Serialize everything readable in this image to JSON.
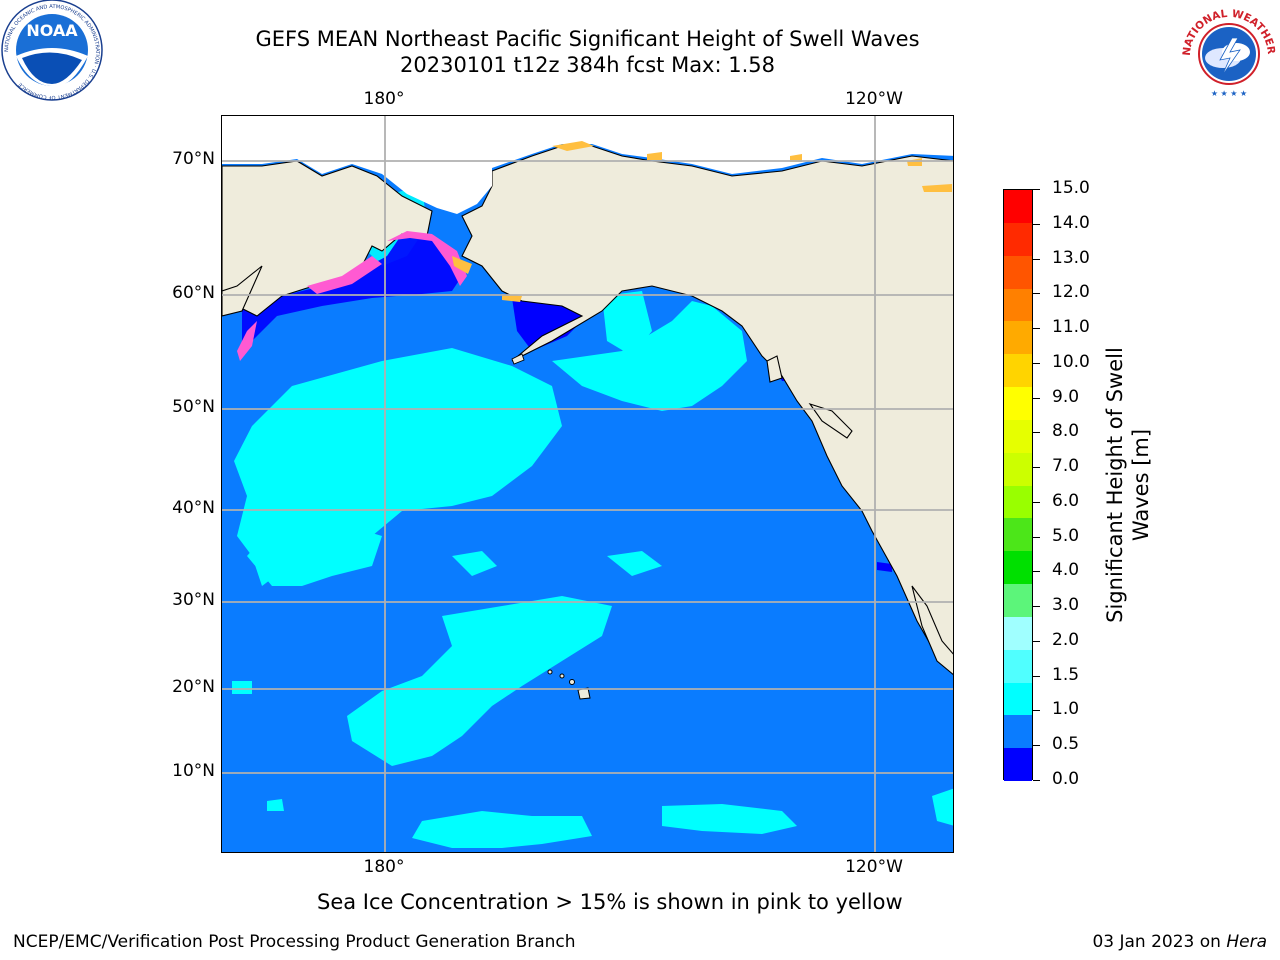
{
  "title": {
    "line1": "GEFS MEAN Northeast Pacific Significant Height of Swell Waves",
    "line2": "20230101 t12z 384h fcst   Max: 1.58"
  },
  "axes": {
    "lon_labels": [
      "180°",
      "120°W"
    ],
    "lat_labels": [
      "70°N",
      "60°N",
      "50°N",
      "40°N",
      "30°N",
      "20°N",
      "10°N"
    ]
  },
  "colorbar": {
    "label_line1": "Significant Height of Swell",
    "label_line2": "Waves [m]",
    "ticks": [
      "15.0",
      "14.0",
      "13.0",
      "12.0",
      "11.0",
      "10.0",
      "9.0",
      "8.0",
      "7.0",
      "6.0",
      "5.0",
      "4.0",
      "3.0",
      "2.0",
      "1.5",
      "1.0",
      "0.5",
      "0.0"
    ],
    "colors_top_to_bottom": [
      "#ff0000",
      "#ff2a00",
      "#ff5500",
      "#ff8000",
      "#ffaa00",
      "#ffd400",
      "#ffff00",
      "#e6ff00",
      "#ccff00",
      "#99ff00",
      "#4ce619",
      "#00e000",
      "#5cf57a",
      "#a0ffff",
      "#50ffff",
      "#00ffff",
      "#0a7cff",
      "#0000ff"
    ]
  },
  "logos": {
    "noaa": "NOAA",
    "noaa_ring": "NATIONAL OCEANIC AND ATMOSPHERIC ADMINISTRATION · U.S. DEPARTMENT OF COMMERCE",
    "nws_ring": "NATIONAL WEATHER SERVICE"
  },
  "note": "Sea Ice Concentration > 15% is shown in pink to yellow",
  "footer": {
    "left": "NCEP/EMC/Verification Post Processing Product Generation Branch",
    "right_date": "03 Jan 2023 on ",
    "right_host": "Hera"
  }
}
